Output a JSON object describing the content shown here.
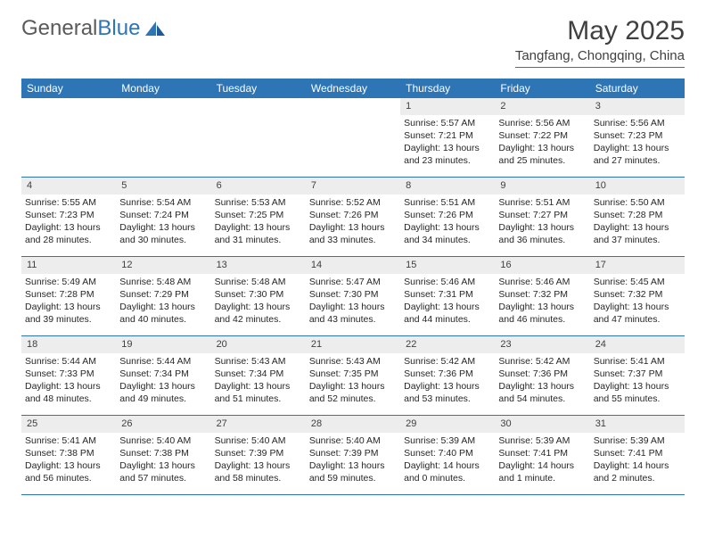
{
  "logo": {
    "text1": "General",
    "text2": "Blue"
  },
  "title": "May 2025",
  "subtitle": "Tangfang, Chongqing, China",
  "colors": {
    "brand": "#2e75b6",
    "header_bg": "#2e75b6",
    "header_text": "#ffffff",
    "daynum_bg": "#ededed",
    "text": "#262626",
    "page_bg": "#ffffff"
  },
  "dayLabels": [
    "Sunday",
    "Monday",
    "Tuesday",
    "Wednesday",
    "Thursday",
    "Friday",
    "Saturday"
  ],
  "weeks": [
    [
      {
        "empty": true
      },
      {
        "empty": true
      },
      {
        "empty": true
      },
      {
        "empty": true
      },
      {
        "num": "1",
        "sunrise": "5:57 AM",
        "sunset": "7:21 PM",
        "daylight": "13 hours and 23 minutes."
      },
      {
        "num": "2",
        "sunrise": "5:56 AM",
        "sunset": "7:22 PM",
        "daylight": "13 hours and 25 minutes."
      },
      {
        "num": "3",
        "sunrise": "5:56 AM",
        "sunset": "7:23 PM",
        "daylight": "13 hours and 27 minutes."
      }
    ],
    [
      {
        "num": "4",
        "sunrise": "5:55 AM",
        "sunset": "7:23 PM",
        "daylight": "13 hours and 28 minutes."
      },
      {
        "num": "5",
        "sunrise": "5:54 AM",
        "sunset": "7:24 PM",
        "daylight": "13 hours and 30 minutes."
      },
      {
        "num": "6",
        "sunrise": "5:53 AM",
        "sunset": "7:25 PM",
        "daylight": "13 hours and 31 minutes."
      },
      {
        "num": "7",
        "sunrise": "5:52 AM",
        "sunset": "7:26 PM",
        "daylight": "13 hours and 33 minutes."
      },
      {
        "num": "8",
        "sunrise": "5:51 AM",
        "sunset": "7:26 PM",
        "daylight": "13 hours and 34 minutes."
      },
      {
        "num": "9",
        "sunrise": "5:51 AM",
        "sunset": "7:27 PM",
        "daylight": "13 hours and 36 minutes."
      },
      {
        "num": "10",
        "sunrise": "5:50 AM",
        "sunset": "7:28 PM",
        "daylight": "13 hours and 37 minutes."
      }
    ],
    [
      {
        "num": "11",
        "sunrise": "5:49 AM",
        "sunset": "7:28 PM",
        "daylight": "13 hours and 39 minutes."
      },
      {
        "num": "12",
        "sunrise": "5:48 AM",
        "sunset": "7:29 PM",
        "daylight": "13 hours and 40 minutes."
      },
      {
        "num": "13",
        "sunrise": "5:48 AM",
        "sunset": "7:30 PM",
        "daylight": "13 hours and 42 minutes."
      },
      {
        "num": "14",
        "sunrise": "5:47 AM",
        "sunset": "7:30 PM",
        "daylight": "13 hours and 43 minutes."
      },
      {
        "num": "15",
        "sunrise": "5:46 AM",
        "sunset": "7:31 PM",
        "daylight": "13 hours and 44 minutes."
      },
      {
        "num": "16",
        "sunrise": "5:46 AM",
        "sunset": "7:32 PM",
        "daylight": "13 hours and 46 minutes."
      },
      {
        "num": "17",
        "sunrise": "5:45 AM",
        "sunset": "7:32 PM",
        "daylight": "13 hours and 47 minutes."
      }
    ],
    [
      {
        "num": "18",
        "sunrise": "5:44 AM",
        "sunset": "7:33 PM",
        "daylight": "13 hours and 48 minutes."
      },
      {
        "num": "19",
        "sunrise": "5:44 AM",
        "sunset": "7:34 PM",
        "daylight": "13 hours and 49 minutes."
      },
      {
        "num": "20",
        "sunrise": "5:43 AM",
        "sunset": "7:34 PM",
        "daylight": "13 hours and 51 minutes."
      },
      {
        "num": "21",
        "sunrise": "5:43 AM",
        "sunset": "7:35 PM",
        "daylight": "13 hours and 52 minutes."
      },
      {
        "num": "22",
        "sunrise": "5:42 AM",
        "sunset": "7:36 PM",
        "daylight": "13 hours and 53 minutes."
      },
      {
        "num": "23",
        "sunrise": "5:42 AM",
        "sunset": "7:36 PM",
        "daylight": "13 hours and 54 minutes."
      },
      {
        "num": "24",
        "sunrise": "5:41 AM",
        "sunset": "7:37 PM",
        "daylight": "13 hours and 55 minutes."
      }
    ],
    [
      {
        "num": "25",
        "sunrise": "5:41 AM",
        "sunset": "7:38 PM",
        "daylight": "13 hours and 56 minutes."
      },
      {
        "num": "26",
        "sunrise": "5:40 AM",
        "sunset": "7:38 PM",
        "daylight": "13 hours and 57 minutes."
      },
      {
        "num": "27",
        "sunrise": "5:40 AM",
        "sunset": "7:39 PM",
        "daylight": "13 hours and 58 minutes."
      },
      {
        "num": "28",
        "sunrise": "5:40 AM",
        "sunset": "7:39 PM",
        "daylight": "13 hours and 59 minutes."
      },
      {
        "num": "29",
        "sunrise": "5:39 AM",
        "sunset": "7:40 PM",
        "daylight": "14 hours and 0 minutes."
      },
      {
        "num": "30",
        "sunrise": "5:39 AM",
        "sunset": "7:41 PM",
        "daylight": "14 hours and 1 minute."
      },
      {
        "num": "31",
        "sunrise": "5:39 AM",
        "sunset": "7:41 PM",
        "daylight": "14 hours and 2 minutes."
      }
    ]
  ],
  "labels": {
    "sunrise": "Sunrise:",
    "sunset": "Sunset:",
    "daylight": "Daylight:"
  }
}
